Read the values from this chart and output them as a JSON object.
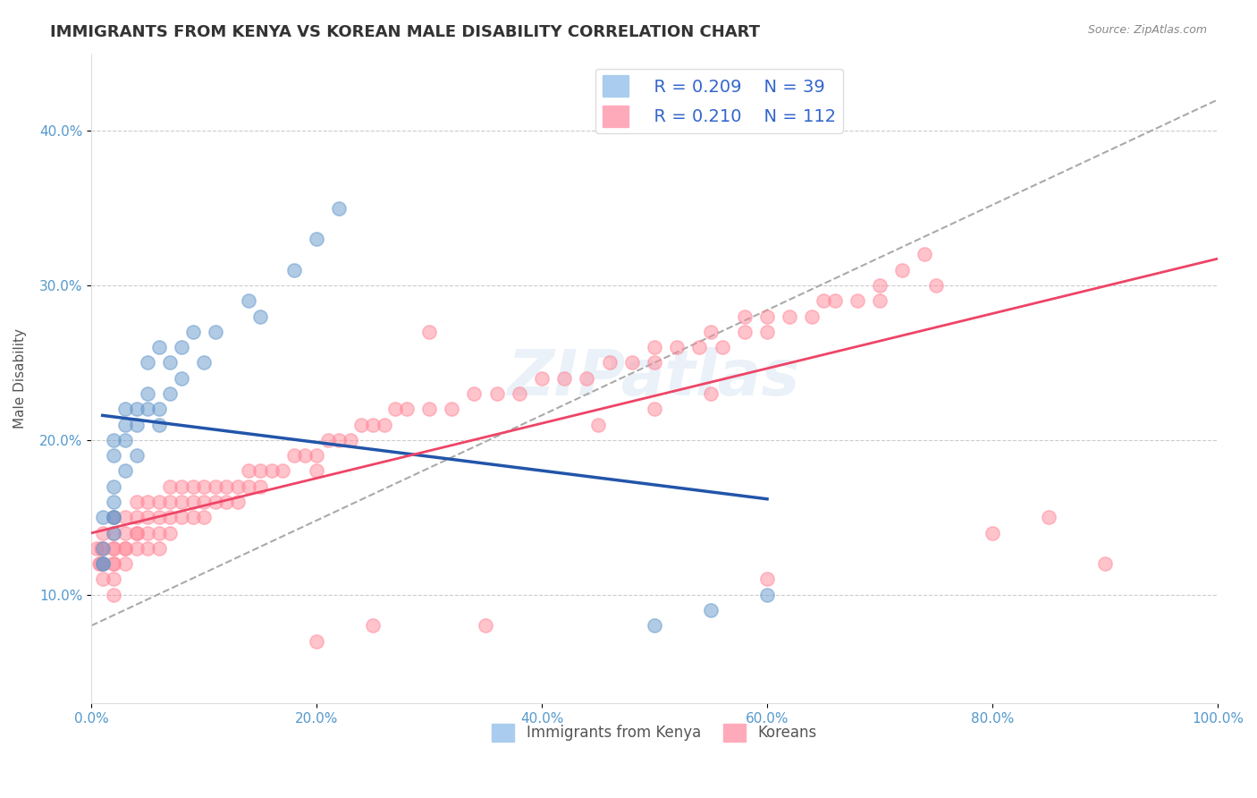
{
  "title": "IMMIGRANTS FROM KENYA VS KOREAN MALE DISABILITY CORRELATION CHART",
  "source": "Source: ZipAtlas.com",
  "xlabel": "",
  "ylabel": "Male Disability",
  "watermark": "ZIPatlas",
  "legend_blue_r": "R = 0.209",
  "legend_blue_n": "N = 39",
  "legend_pink_r": "R = 0.210",
  "legend_pink_n": "N = 112",
  "legend_blue_label": "Immigrants from Kenya",
  "legend_pink_label": "Koreans",
  "xlim": [
    0.0,
    1.0
  ],
  "ylim": [
    0.03,
    0.45
  ],
  "xticks": [
    0.0,
    0.2,
    0.4,
    0.6,
    0.8,
    1.0
  ],
  "xticklabels": [
    "0.0%",
    "20.0%",
    "40.0%",
    "60.0%",
    "80.0%",
    "100.0%"
  ],
  "yticks": [
    0.1,
    0.2,
    0.3,
    0.4
  ],
  "yticklabels": [
    "10.0%",
    "20.0%",
    "30.0%",
    "40.0%"
  ],
  "blue_color": "#6699CC",
  "pink_color": "#FF8899",
  "blue_line_color": "#2255AA",
  "pink_line_color": "#EE4466",
  "trend_line_color": "#AAAAAA",
  "blue_scatter_x": [
    0.01,
    0.01,
    0.01,
    0.01,
    0.02,
    0.02,
    0.02,
    0.02,
    0.02,
    0.02,
    0.02,
    0.03,
    0.03,
    0.03,
    0.03,
    0.04,
    0.04,
    0.04,
    0.05,
    0.05,
    0.05,
    0.06,
    0.06,
    0.06,
    0.07,
    0.07,
    0.08,
    0.08,
    0.09,
    0.1,
    0.11,
    0.14,
    0.15,
    0.18,
    0.2,
    0.22,
    0.5,
    0.55,
    0.6
  ],
  "blue_scatter_y": [
    0.15,
    0.13,
    0.12,
    0.12,
    0.2,
    0.19,
    0.17,
    0.16,
    0.15,
    0.15,
    0.14,
    0.22,
    0.21,
    0.2,
    0.18,
    0.22,
    0.21,
    0.19,
    0.25,
    0.23,
    0.22,
    0.26,
    0.22,
    0.21,
    0.25,
    0.23,
    0.26,
    0.24,
    0.27,
    0.25,
    0.27,
    0.29,
    0.28,
    0.31,
    0.33,
    0.35,
    0.08,
    0.09,
    0.1
  ],
  "pink_scatter_x": [
    0.005,
    0.007,
    0.008,
    0.009,
    0.01,
    0.01,
    0.01,
    0.01,
    0.02,
    0.02,
    0.02,
    0.02,
    0.02,
    0.02,
    0.02,
    0.02,
    0.03,
    0.03,
    0.03,
    0.03,
    0.03,
    0.04,
    0.04,
    0.04,
    0.04,
    0.04,
    0.05,
    0.05,
    0.05,
    0.05,
    0.06,
    0.06,
    0.06,
    0.06,
    0.07,
    0.07,
    0.07,
    0.07,
    0.08,
    0.08,
    0.08,
    0.09,
    0.09,
    0.09,
    0.1,
    0.1,
    0.1,
    0.11,
    0.11,
    0.12,
    0.12,
    0.13,
    0.13,
    0.14,
    0.14,
    0.15,
    0.15,
    0.16,
    0.17,
    0.18,
    0.19,
    0.2,
    0.2,
    0.21,
    0.22,
    0.23,
    0.24,
    0.25,
    0.26,
    0.27,
    0.28,
    0.3,
    0.32,
    0.34,
    0.36,
    0.38,
    0.4,
    0.42,
    0.44,
    0.46,
    0.48,
    0.5,
    0.52,
    0.54,
    0.56,
    0.58,
    0.6,
    0.62,
    0.64,
    0.66,
    0.68,
    0.7,
    0.72,
    0.74,
    0.5,
    0.55,
    0.58,
    0.6,
    0.65,
    0.7,
    0.75,
    0.8,
    0.85,
    0.9,
    0.3,
    0.35,
    0.25,
    0.2,
    0.45,
    0.5,
    0.55,
    0.6
  ],
  "pink_scatter_y": [
    0.13,
    0.12,
    0.12,
    0.13,
    0.14,
    0.13,
    0.12,
    0.11,
    0.15,
    0.14,
    0.13,
    0.13,
    0.12,
    0.12,
    0.11,
    0.1,
    0.15,
    0.14,
    0.13,
    0.13,
    0.12,
    0.16,
    0.15,
    0.14,
    0.14,
    0.13,
    0.16,
    0.15,
    0.14,
    0.13,
    0.16,
    0.15,
    0.14,
    0.13,
    0.17,
    0.16,
    0.15,
    0.14,
    0.17,
    0.16,
    0.15,
    0.17,
    0.16,
    0.15,
    0.17,
    0.16,
    0.15,
    0.17,
    0.16,
    0.17,
    0.16,
    0.17,
    0.16,
    0.18,
    0.17,
    0.18,
    0.17,
    0.18,
    0.18,
    0.19,
    0.19,
    0.19,
    0.18,
    0.2,
    0.2,
    0.2,
    0.21,
    0.21,
    0.21,
    0.22,
    0.22,
    0.22,
    0.22,
    0.23,
    0.23,
    0.23,
    0.24,
    0.24,
    0.24,
    0.25,
    0.25,
    0.25,
    0.26,
    0.26,
    0.26,
    0.27,
    0.27,
    0.28,
    0.28,
    0.29,
    0.29,
    0.3,
    0.31,
    0.32,
    0.26,
    0.27,
    0.28,
    0.28,
    0.29,
    0.29,
    0.3,
    0.14,
    0.15,
    0.12,
    0.27,
    0.08,
    0.08,
    0.07,
    0.21,
    0.22,
    0.23,
    0.11
  ]
}
